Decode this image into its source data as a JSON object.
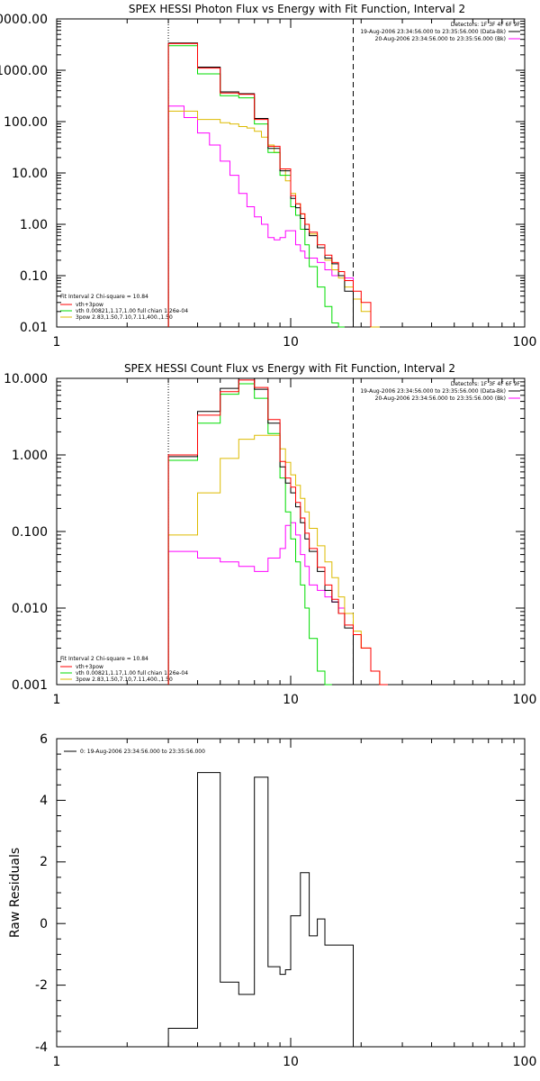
{
  "chart_data": [
    {
      "type": "line",
      "title": "SPEX HESSI Photon Flux vs Energy with Fit Function, Interval 2",
      "ylabel": "",
      "xlabel": "",
      "xscale": "log",
      "yscale": "log",
      "xlim": [
        1,
        100
      ],
      "ylim": [
        0.01,
        10000
      ],
      "x_ticks": [
        "1",
        "10",
        "100"
      ],
      "y_ticks": [
        "0.01",
        "0.10",
        "1.00",
        "10.00",
        "100.00",
        "1000.00",
        "10000.00"
      ],
      "legend_top_right": [
        "Detectors: 1F 3F 4F 6F 9F",
        "19-Aug-2006 23:34:56.000 to 23:35:56.000 (Data-Bk)",
        "20-Aug-2006 23:34:56.000 to 23:35:56.000 (Bk)"
      ],
      "legend_bottom_left": [
        "Fit Interval 2   Chi-square = 10.84",
        "vth+3pow",
        "vth 0.00821,1.17,1.00  full chian 1.26e-04",
        "3pow 2.83,1.50,7.10,7.11,400.,1.50"
      ],
      "fit_range_lines": [
        3,
        18.5
      ],
      "colors": {
        "data": "#000000",
        "total": "#ff0000",
        "vth": "#00dd00",
        "pow": "#ddbb00",
        "bk": "#ff00ff"
      },
      "edges": [
        3,
        3.5,
        4,
        4.5,
        5,
        5.5,
        6,
        6.5,
        7,
        7.5,
        8,
        8.5,
        9,
        9.5,
        10,
        10.5,
        11,
        11.5,
        12,
        13,
        14,
        15,
        16,
        17,
        18.5,
        20,
        22,
        24,
        26
      ],
      "series": [
        {
          "key": "bk",
          "values": [
            200,
            120,
            60,
            35,
            17,
            9,
            4,
            2.2,
            1.4,
            1,
            0.55,
            0.5,
            0.55,
            0.75,
            0.75,
            0.4,
            0.3,
            0.22,
            0.22,
            0.18,
            0.13,
            0.1,
            0.1,
            0.09,
            null,
            null,
            null,
            null
          ]
        },
        {
          "key": "pow",
          "values": [
            160,
            160,
            110,
            110,
            95,
            90,
            80,
            75,
            65,
            50,
            35,
            25,
            12,
            7,
            4,
            2.5,
            1.6,
            1,
            0.65,
            0.35,
            0.2,
            0.13,
            0.09,
            0.06,
            0.035,
            0.02,
            0.01,
            null
          ]
        },
        {
          "key": "vth",
          "values": [
            3000,
            3000,
            850,
            850,
            320,
            320,
            290,
            290,
            90,
            90,
            25,
            25,
            9,
            9,
            2.2,
            1.5,
            0.8,
            0.4,
            0.15,
            0.06,
            0.025,
            0.012,
            0.01,
            null,
            null,
            null,
            null,
            null
          ]
        },
        {
          "key": "data",
          "values": [
            3400,
            3400,
            1150,
            1150,
            380,
            380,
            350,
            350,
            115,
            115,
            30,
            30,
            11,
            11,
            3.2,
            2.1,
            1.3,
            0.8,
            0.6,
            0.35,
            0.22,
            0.17,
            0.1,
            0.05,
            null,
            null,
            null,
            null
          ]
        },
        {
          "key": "total",
          "values": [
            3300,
            3300,
            1100,
            1100,
            360,
            360,
            340,
            340,
            110,
            110,
            33,
            33,
            12,
            12,
            3.6,
            2.5,
            1.6,
            1,
            0.7,
            0.4,
            0.25,
            0.18,
            0.12,
            0.08,
            0.05,
            0.03,
            null,
            null
          ]
        }
      ]
    },
    {
      "type": "line",
      "title": "SPEX HESSI Count Flux vs Energy with Fit Function, Interval 2",
      "ylabel": "",
      "xlabel": "",
      "xscale": "log",
      "yscale": "log",
      "xlim": [
        1,
        100
      ],
      "ylim": [
        0.001,
        10
      ],
      "x_ticks": [
        "1",
        "10",
        "100"
      ],
      "y_ticks": [
        "0.001",
        "0.010",
        "0.100",
        "1.000",
        "10.000"
      ],
      "legend_top_right": [
        "Detectors: 1F 3F 4F 6F 9F",
        "19-Aug-2006 23:34:56.000 to 23:35:56.000 (Data-Bk)",
        "20-Aug-2006 23:34:56.000 to 23:35:56.000 (Bk)"
      ],
      "legend_bottom_left": [
        "Fit Interval 2   Chi-square = 10.84",
        "vth+3pow",
        "vth 0.00821,1.17,1.00  full chian 1.26e-04",
        "3pow 2.83,1.50,7.10,7.11,400.,1.50"
      ],
      "fit_range_lines": [
        3,
        18.5
      ],
      "colors": {
        "data": "#000000",
        "total": "#ff0000",
        "vth": "#00dd00",
        "pow": "#ddbb00",
        "bk": "#ff00ff"
      },
      "edges": [
        3,
        4,
        5,
        6,
        7,
        8,
        9,
        9.5,
        10,
        10.5,
        11,
        11.5,
        12,
        13,
        14,
        15,
        16,
        17,
        18.5,
        20,
        22,
        24,
        26
      ],
      "series": [
        {
          "key": "bk",
          "values": [
            0.055,
            0.045,
            0.04,
            0.035,
            0.03,
            0.045,
            0.06,
            0.12,
            0.13,
            0.09,
            0.05,
            0.035,
            0.02,
            0.017,
            0.014,
            0.012,
            0.01,
            0.0085,
            null,
            null,
            null,
            null
          ]
        },
        {
          "key": "pow",
          "values": [
            0.09,
            0.32,
            0.9,
            1.6,
            1.8,
            1.8,
            1.2,
            0.8,
            0.55,
            0.4,
            0.27,
            0.18,
            0.11,
            0.065,
            0.04,
            0.025,
            0.014,
            0.0085,
            0.005,
            0.003,
            0.0015,
            0.0009
          ]
        },
        {
          "key": "vth",
          "values": [
            0.85,
            2.6,
            6.2,
            8.5,
            5.5,
            1.9,
            0.5,
            0.18,
            0.08,
            0.04,
            0.02,
            0.01,
            0.004,
            0.0015,
            0.0008,
            null,
            null,
            null,
            null,
            null,
            null,
            null
          ]
        },
        {
          "key": "data",
          "values": [
            0.95,
            3.7,
            7.4,
            10.2,
            7.2,
            2.6,
            0.7,
            0.43,
            0.32,
            0.21,
            0.13,
            0.08,
            0.055,
            0.03,
            0.017,
            0.012,
            0.0085,
            0.0055,
            null,
            null,
            null,
            null
          ]
        },
        {
          "key": "total",
          "values": [
            1.0,
            3.3,
            6.7,
            9.5,
            7.6,
            2.9,
            0.82,
            0.5,
            0.38,
            0.24,
            0.15,
            0.095,
            0.06,
            0.034,
            0.02,
            0.013,
            0.0085,
            0.006,
            0.0045,
            0.003,
            0.0015,
            0.0009
          ]
        }
      ]
    },
    {
      "type": "line",
      "title": "",
      "ylabel": "Raw Residuals",
      "xlabel": "",
      "xscale": "log",
      "yscale": "linear",
      "xlim": [
        1,
        100
      ],
      "ylim": [
        -4,
        6
      ],
      "x_ticks": [
        "1",
        "10",
        "100"
      ],
      "y_ticks": [
        "-4",
        "-2",
        "0",
        "2",
        "4",
        "6"
      ],
      "legend": [
        "0: 19-Aug-2006 23:34:56.000 to 23:35:56.000"
      ],
      "edges": [
        3,
        4,
        5,
        6,
        7,
        8,
        9,
        9.5,
        10,
        11,
        12,
        13,
        14,
        15,
        16,
        17,
        18.5
      ],
      "series": [
        {
          "key": "residuals",
          "values": [
            -3.4,
            4.9,
            -1.9,
            -2.3,
            4.75,
            -1.4,
            -1.65,
            -1.5,
            0.25,
            1.65,
            -0.4,
            0.15,
            -0.7,
            -0.7,
            -0.7,
            -0.7
          ]
        }
      ]
    }
  ]
}
